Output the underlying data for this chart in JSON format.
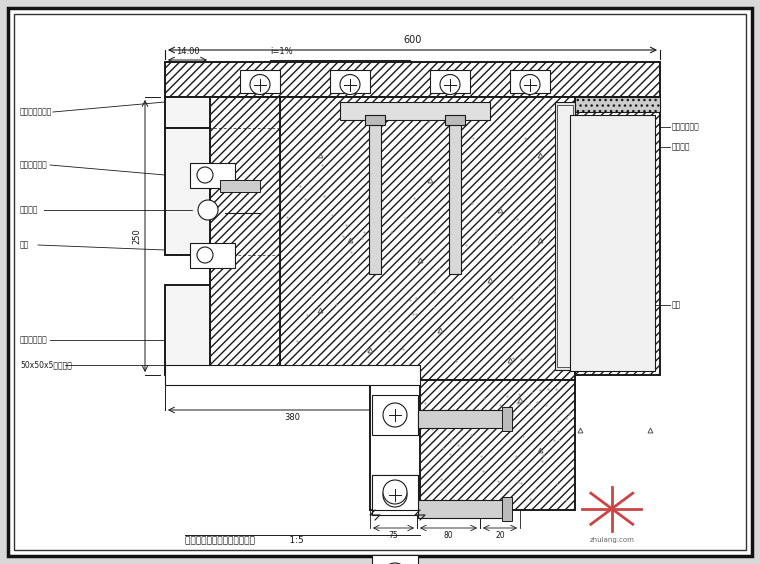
{
  "bg_color": "#d8d8d8",
  "paper_color": "#ffffff",
  "line_color": "#1a1a1a",
  "hatch_dense": "////",
  "title": "某干挂石材线条节点构造详图",
  "scale": "1:5",
  "dim_top": "600",
  "dim_sub": "14.00",
  "dim_slope": "i=1%",
  "dim_250": "250",
  "dim_380": "380",
  "dim_75": "75",
  "dim_80": "80",
  "dim_20": "20",
  "label_1": "石材平顶板角线",
  "label_2": "不锈钢干挂件",
  "label_3": "油漆断件",
  "label_4": "石材",
  "label_5": "不锈钢干挂件",
  "label_6": "50x50x5镀锌角钢",
  "label_r1": "混水工程处理",
  "label_r2": "磁砖饰面",
  "label_r3": "膨钉",
  "watermark_text": "zhulang.com"
}
